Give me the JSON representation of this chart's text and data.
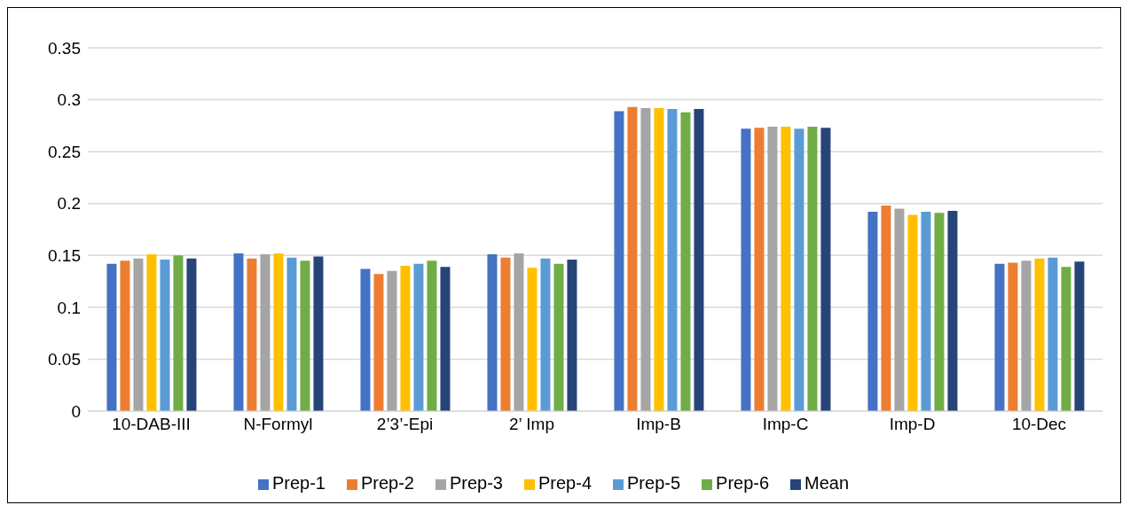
{
  "chart_data": {
    "type": "bar",
    "categories": [
      "10-DAB-III",
      "N-Formyl",
      "2’3’-Epi",
      "2’ Imp",
      "Imp-B",
      "Imp-C",
      "Imp-D",
      "10-Dec"
    ],
    "series": [
      {
        "name": "Prep-1",
        "color": "#4472c4",
        "values": [
          0.142,
          0.152,
          0.137,
          0.151,
          0.289,
          0.272,
          0.192,
          0.142
        ]
      },
      {
        "name": "Prep-2",
        "color": "#ed7d31",
        "values": [
          0.145,
          0.147,
          0.132,
          0.148,
          0.293,
          0.273,
          0.198,
          0.143
        ]
      },
      {
        "name": "Prep-3",
        "color": "#a5a5a5",
        "values": [
          0.147,
          0.151,
          0.135,
          0.152,
          0.292,
          0.274,
          0.195,
          0.145
        ]
      },
      {
        "name": "Prep-4",
        "color": "#ffc000",
        "values": [
          0.151,
          0.152,
          0.14,
          0.138,
          0.292,
          0.274,
          0.189,
          0.147
        ]
      },
      {
        "name": "Prep-5",
        "color": "#5b9bd5",
        "values": [
          0.146,
          0.148,
          0.142,
          0.147,
          0.291,
          0.272,
          0.192,
          0.148
        ]
      },
      {
        "name": "Prep-6",
        "color": "#70ad47",
        "values": [
          0.15,
          0.145,
          0.145,
          0.142,
          0.288,
          0.274,
          0.191,
          0.139
        ]
      },
      {
        "name": "Mean",
        "color": "#264478",
        "values": [
          0.147,
          0.149,
          0.139,
          0.146,
          0.291,
          0.273,
          0.193,
          0.144
        ]
      }
    ],
    "ylim": [
      0,
      0.35
    ],
    "yticks": [
      0,
      0.05,
      0.1,
      0.15,
      0.2,
      0.25,
      0.3,
      0.35
    ],
    "grid": "y",
    "legend": "bottom"
  }
}
